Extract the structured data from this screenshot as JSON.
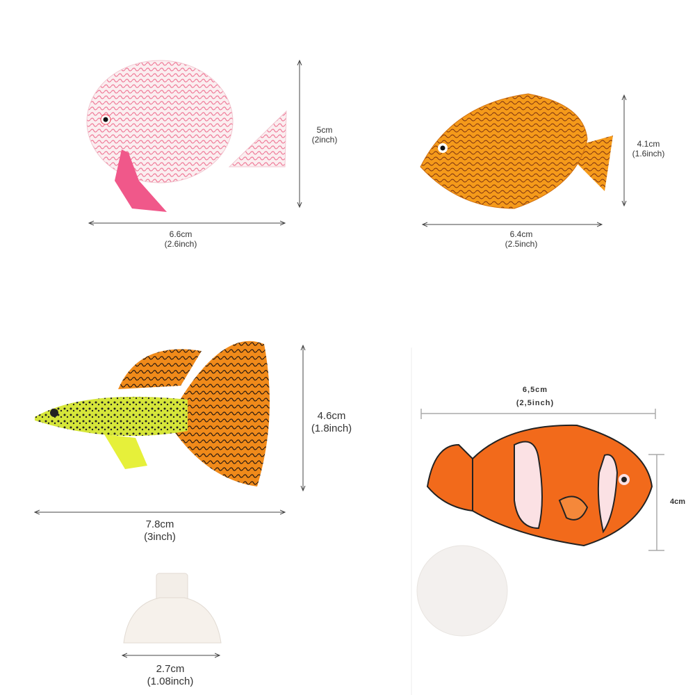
{
  "panels": [
    {
      "name": "pink-discus",
      "width_cm": "6.6cm",
      "width_in": "(2.6inch)",
      "height_cm": "5cm",
      "height_in": "(2inch)"
    },
    {
      "name": "orange-tang",
      "width_cm": "6.4cm",
      "width_in": "(2.5inch)",
      "height_cm": "4.1cm",
      "height_in": "(1.6inch)"
    },
    {
      "name": "guppy",
      "width_cm": "7.8cm",
      "width_in": "(3inch)",
      "height_cm": "4.6cm",
      "height_in": "(1.8inch)",
      "suction_cm": "2.7cm",
      "suction_in": "(1.08inch)"
    },
    {
      "name": "clownfish",
      "width_cm": "6,5cm",
      "width_in": "(2,5inch)",
      "height_cm": "4cm"
    }
  ],
  "colors": {
    "pink": "#f4a6b8",
    "orange": "#f59a1a",
    "guppy_green": "#d6e63a",
    "clown_orange": "#f26a1b",
    "line": "#555555"
  }
}
